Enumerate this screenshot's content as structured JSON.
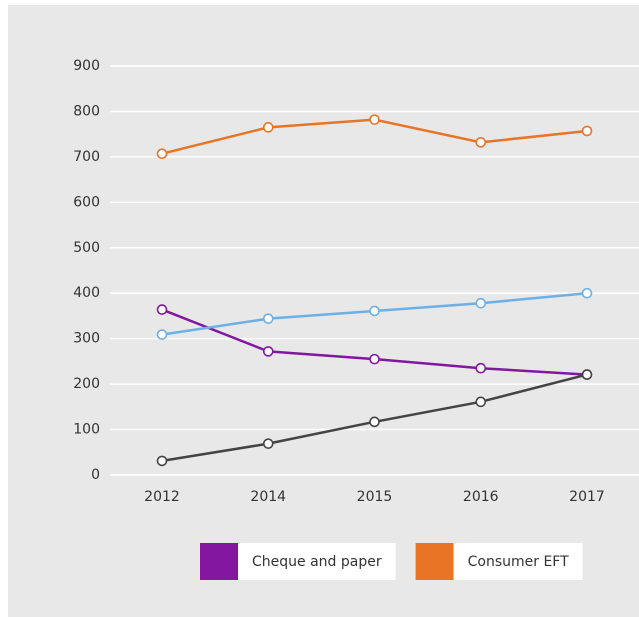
{
  "chart_data": {
    "type": "line",
    "categories": [
      "2012",
      "2014",
      "2015",
      "2016",
      "2017"
    ],
    "series": [
      {
        "name": "Cheque and paper",
        "color": "#8317a0",
        "values": [
          364,
          272,
          255,
          235,
          221
        ]
      },
      {
        "name": "Consumer EFT",
        "color": "#ea7425",
        "values": [
          707,
          765,
          782,
          732,
          757
        ]
      },
      {
        "color": "#6cb0e6",
        "values": [
          309,
          344,
          361,
          378,
          400
        ]
      },
      {
        "color": "#444444",
        "values": [
          31,
          69,
          117,
          161,
          221
        ]
      }
    ],
    "ylim": [
      0,
      900
    ],
    "yticks": [
      0,
      100,
      200,
      300,
      400,
      500,
      600,
      700,
      800,
      900
    ],
    "grid": true
  }
}
